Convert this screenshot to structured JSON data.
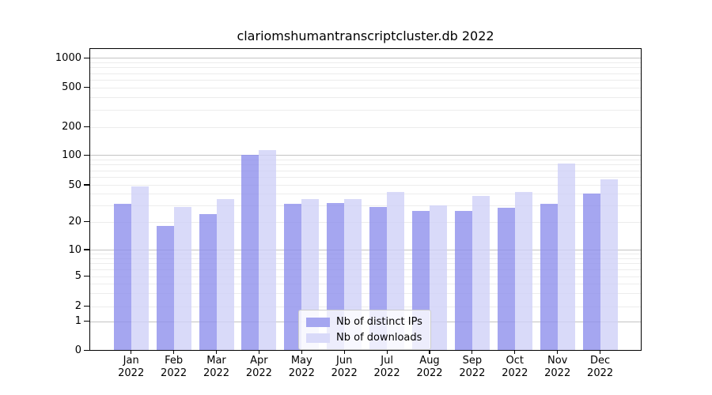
{
  "chart_data": {
    "type": "bar",
    "title": "clariomshumantranscriptcluster.db 2022",
    "year_label": "2022",
    "categories": [
      "Jan",
      "Feb",
      "Mar",
      "Apr",
      "May",
      "Jun",
      "Jul",
      "Aug",
      "Sep",
      "Oct",
      "Nov",
      "Dec"
    ],
    "series": [
      {
        "name": "Nb of distinct IPs",
        "color": "#a5a6f0",
        "values": [
          31,
          18,
          24,
          100,
          31,
          32,
          29,
          26,
          26,
          28,
          31,
          40
        ]
      },
      {
        "name": "Nb of downloads",
        "color": "#d9daf9",
        "values": [
          48,
          29,
          35,
          113,
          35,
          35,
          42,
          30,
          38,
          42,
          82,
          57
        ]
      }
    ],
    "xlabel": "",
    "ylabel": "",
    "yscale": "log",
    "ylim": [
      0,
      1000
    ],
    "yticks": [
      0,
      1,
      2,
      5,
      10,
      20,
      50,
      100,
      200,
      500,
      1000
    ],
    "major_gridlines": [
      1,
      10,
      100,
      1000
    ],
    "minor_gridlines": [
      2,
      3,
      4,
      5,
      6,
      7,
      8,
      9,
      20,
      30,
      40,
      50,
      60,
      70,
      80,
      90,
      200,
      300,
      400,
      500,
      600,
      700,
      800,
      900
    ],
    "grid": true,
    "legend_position": "bottom-center",
    "colors": {
      "axis": "#000000",
      "major_grid": "#c3c3c3",
      "minor_grid": "#ececec",
      "background": "#ffffff"
    }
  }
}
